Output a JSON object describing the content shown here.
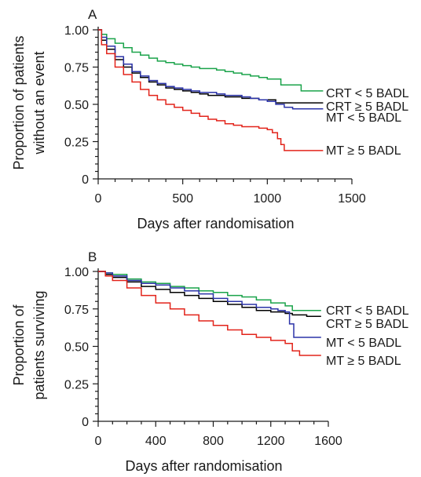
{
  "chart_data": [
    {
      "panel": "A",
      "type": "line",
      "ylabel": "Proportion of patients without an event",
      "ylabel_lines": [
        "Proportion of patients",
        "without an event"
      ],
      "xlabel": "Days after randomisation",
      "xlim": [
        0,
        1500
      ],
      "ylim": [
        0,
        1
      ],
      "xticks": [
        0,
        500,
        1000,
        1500
      ],
      "xtick_labels": [
        "0",
        "500",
        "1000",
        "1500"
      ],
      "yticks": [
        0,
        0.25,
        0.5,
        0.75,
        1.0
      ],
      "ytick_labels": [
        "0",
        "0.25",
        "0.50",
        "0.75",
        "1.00"
      ],
      "grid": false,
      "step": true,
      "series": [
        {
          "name": "CRT < 5 BADL",
          "color": "#1aa34a",
          "x": [
            0,
            20,
            50,
            100,
            150,
            200,
            250,
            300,
            350,
            400,
            450,
            500,
            550,
            600,
            650,
            700,
            750,
            800,
            850,
            900,
            950,
            1000,
            1050,
            1080,
            1100,
            1150,
            1200,
            1250,
            1300,
            1330
          ],
          "y": [
            1.0,
            0.97,
            0.94,
            0.91,
            0.88,
            0.85,
            0.83,
            0.81,
            0.79,
            0.78,
            0.77,
            0.76,
            0.75,
            0.74,
            0.74,
            0.73,
            0.72,
            0.71,
            0.7,
            0.69,
            0.68,
            0.67,
            0.67,
            0.63,
            0.63,
            0.63,
            0.59,
            0.59,
            0.59,
            0.59
          ]
        },
        {
          "name": "CRT ≥ 5 BADL",
          "color": "#000000",
          "x": [
            0,
            20,
            50,
            100,
            150,
            200,
            250,
            300,
            350,
            400,
            450,
            500,
            550,
            600,
            650,
            700,
            750,
            800,
            850,
            900,
            950,
            1000,
            1050,
            1100,
            1150,
            1200,
            1250,
            1330
          ],
          "y": [
            1.0,
            0.93,
            0.87,
            0.8,
            0.75,
            0.71,
            0.68,
            0.65,
            0.63,
            0.61,
            0.6,
            0.59,
            0.58,
            0.57,
            0.56,
            0.56,
            0.55,
            0.55,
            0.54,
            0.54,
            0.53,
            0.53,
            0.51,
            0.51,
            0.51,
            0.51,
            0.51,
            0.51
          ]
        },
        {
          "name": "MT < 5 BADL",
          "color": "#2b33a8",
          "x": [
            0,
            20,
            50,
            100,
            150,
            200,
            250,
            300,
            350,
            400,
            450,
            500,
            550,
            600,
            650,
            700,
            750,
            800,
            850,
            900,
            950,
            1000,
            1050,
            1100,
            1150,
            1200,
            1250,
            1300,
            1330
          ],
          "y": [
            1.0,
            0.95,
            0.89,
            0.82,
            0.77,
            0.72,
            0.69,
            0.66,
            0.64,
            0.62,
            0.61,
            0.6,
            0.59,
            0.58,
            0.58,
            0.57,
            0.56,
            0.56,
            0.55,
            0.54,
            0.53,
            0.52,
            0.5,
            0.48,
            0.47,
            0.47,
            0.47,
            0.47,
            0.47
          ]
        },
        {
          "name": "MT ≥ 5 BADL",
          "color": "#e2231a",
          "x": [
            0,
            20,
            50,
            100,
            150,
            200,
            250,
            300,
            350,
            400,
            450,
            500,
            550,
            600,
            650,
            700,
            750,
            800,
            850,
            900,
            950,
            1000,
            1030,
            1060,
            1080,
            1100,
            1150,
            1200,
            1250,
            1330
          ],
          "y": [
            1.0,
            0.9,
            0.84,
            0.75,
            0.7,
            0.65,
            0.6,
            0.56,
            0.53,
            0.5,
            0.48,
            0.46,
            0.44,
            0.42,
            0.4,
            0.39,
            0.37,
            0.36,
            0.35,
            0.35,
            0.34,
            0.33,
            0.31,
            0.27,
            0.23,
            0.19,
            0.19,
            0.19,
            0.19,
            0.19
          ]
        }
      ]
    },
    {
      "panel": "B",
      "type": "line",
      "ylabel": "Proportion of patients surviving",
      "ylabel_lines": [
        "Proportion of",
        "patients surviving"
      ],
      "xlabel": "Days after randomisation",
      "xlim": [
        0,
        1600
      ],
      "ylim": [
        0,
        1
      ],
      "xticks": [
        0,
        400,
        800,
        1200,
        1600
      ],
      "xtick_labels": [
        "0",
        "400",
        "800",
        "1200",
        "1600"
      ],
      "yticks": [
        0,
        0.25,
        0.5,
        0.75,
        1.0
      ],
      "ytick_labels": [
        "0",
        "0.25",
        "0.50",
        "0.75",
        "1.00"
      ],
      "grid": false,
      "step": true,
      "series": [
        {
          "name": "CRT < 5 BADL",
          "color": "#1aa34a",
          "x": [
            0,
            50,
            100,
            200,
            300,
            400,
            500,
            600,
            700,
            800,
            900,
            1000,
            1100,
            1200,
            1300,
            1350,
            1400,
            1450,
            1500,
            1550
          ],
          "y": [
            1.0,
            0.99,
            0.98,
            0.95,
            0.93,
            0.92,
            0.9,
            0.89,
            0.87,
            0.86,
            0.84,
            0.83,
            0.81,
            0.79,
            0.77,
            0.74,
            0.74,
            0.74,
            0.74,
            0.74
          ]
        },
        {
          "name": "CRT ≥ 5 BADL",
          "color": "#000000",
          "x": [
            0,
            50,
            100,
            200,
            300,
            400,
            500,
            600,
            700,
            800,
            900,
            1000,
            1100,
            1200,
            1300,
            1350,
            1400,
            1450,
            1500,
            1550
          ],
          "y": [
            1.0,
            0.98,
            0.96,
            0.93,
            0.9,
            0.88,
            0.86,
            0.84,
            0.82,
            0.8,
            0.78,
            0.76,
            0.74,
            0.73,
            0.72,
            0.71,
            0.71,
            0.7,
            0.7,
            0.7
          ]
        },
        {
          "name": "MT < 5 BADL",
          "color": "#2b33a8",
          "x": [
            0,
            50,
            100,
            200,
            300,
            400,
            500,
            600,
            700,
            800,
            900,
            1000,
            1100,
            1200,
            1250,
            1300,
            1330,
            1360,
            1400,
            1450,
            1500,
            1550
          ],
          "y": [
            1.0,
            0.99,
            0.97,
            0.94,
            0.92,
            0.91,
            0.89,
            0.87,
            0.85,
            0.82,
            0.8,
            0.78,
            0.76,
            0.75,
            0.74,
            0.73,
            0.65,
            0.56,
            0.56,
            0.56,
            0.56,
            0.56
          ]
        },
        {
          "name": "MT ≥ 5 BADL",
          "color": "#e2231a",
          "x": [
            0,
            50,
            100,
            200,
            300,
            400,
            500,
            600,
            700,
            800,
            900,
            1000,
            1100,
            1200,
            1300,
            1350,
            1400,
            1450,
            1500,
            1550
          ],
          "y": [
            1.0,
            0.97,
            0.94,
            0.89,
            0.84,
            0.79,
            0.75,
            0.71,
            0.67,
            0.64,
            0.61,
            0.58,
            0.56,
            0.54,
            0.52,
            0.47,
            0.44,
            0.44,
            0.44,
            0.44
          ]
        }
      ]
    }
  ]
}
